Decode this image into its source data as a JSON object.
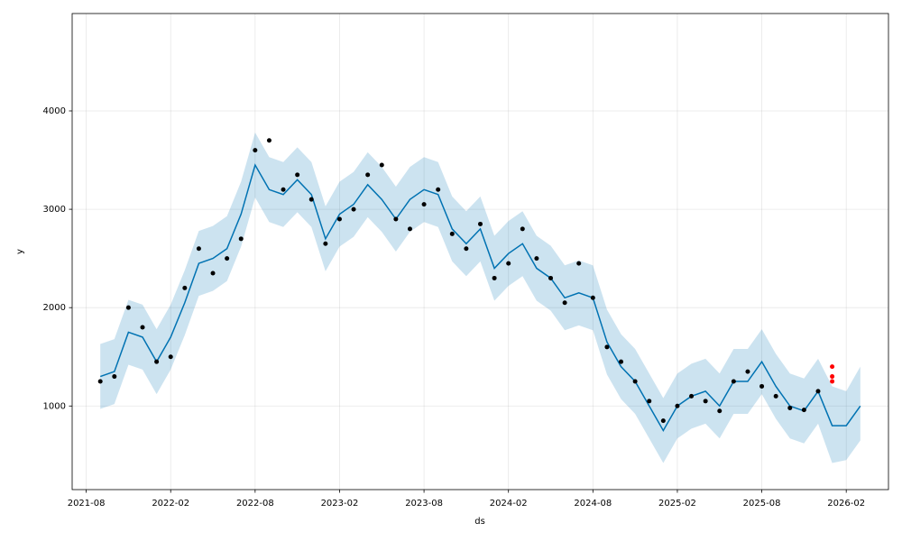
{
  "chart_data": {
    "type": "forecast",
    "x_label": "ds",
    "y_label": "y",
    "xlim": [
      "2021-07",
      "2026-05"
    ],
    "ylim": [
      150,
      4990
    ],
    "xticks": [
      "2021-08",
      "2022-02",
      "2022-08",
      "2023-02",
      "2023-08",
      "2024-02",
      "2024-08",
      "2025-02",
      "2025-08",
      "2026-02"
    ],
    "yticks": [
      1000,
      2000,
      3000,
      4000
    ],
    "grid": true,
    "series": [
      {
        "type": "band-line",
        "color": "#0072B2",
        "band_color": "#0072B2",
        "band_alpha": 0.2,
        "x": [
          "2021-09",
          "2021-10",
          "2021-11",
          "2021-12",
          "2022-01",
          "2022-02",
          "2022-03",
          "2022-04",
          "2022-05",
          "2022-06",
          "2022-07",
          "2022-08",
          "2022-09",
          "2022-10",
          "2022-11",
          "2022-12",
          "2023-01",
          "2023-02",
          "2023-03",
          "2023-04",
          "2023-05",
          "2023-06",
          "2023-07",
          "2023-08",
          "2023-09",
          "2023-10",
          "2023-11",
          "2023-12",
          "2024-01",
          "2024-02",
          "2024-03",
          "2024-04",
          "2024-05",
          "2024-06",
          "2024-07",
          "2024-08",
          "2024-09",
          "2024-10",
          "2024-11",
          "2024-12",
          "2025-01",
          "2025-02",
          "2025-03",
          "2025-04",
          "2025-05",
          "2025-06",
          "2025-07",
          "2025-08",
          "2025-09",
          "2025-10",
          "2025-11",
          "2025-12",
          "2026-01",
          "2026-02",
          "2026-03"
        ],
        "values": [
          1300,
          1350,
          1750,
          1700,
          1450,
          1700,
          2050,
          2450,
          2500,
          2600,
          2950,
          3450,
          3200,
          3150,
          3300,
          3150,
          2700,
          2950,
          3050,
          3250,
          3100,
          2900,
          3100,
          3200,
          3150,
          2800,
          2650,
          2800,
          2400,
          2550,
          2650,
          2400,
          2300,
          2100,
          2150,
          2100,
          1650,
          1400,
          1250,
          1000,
          750,
          1000,
          1100,
          1150,
          1000,
          1250,
          1250,
          1450,
          1200,
          1000,
          950,
          1150,
          800,
          800,
          1000
        ],
        "lower": [
          970,
          1020,
          1420,
          1370,
          1120,
          1370,
          1720,
          2120,
          2170,
          2270,
          2620,
          3120,
          2870,
          2820,
          2970,
          2820,
          2370,
          2620,
          2720,
          2920,
          2770,
          2570,
          2770,
          2870,
          2820,
          2470,
          2320,
          2470,
          2070,
          2220,
          2320,
          2070,
          1970,
          1770,
          1820,
          1770,
          1320,
          1070,
          920,
          670,
          420,
          670,
          770,
          820,
          670,
          920,
          920,
          1120,
          870,
          670,
          620,
          820,
          420,
          450,
          650
        ],
        "upper": [
          1630,
          1680,
          2080,
          2030,
          1780,
          2030,
          2380,
          2780,
          2830,
          2930,
          3280,
          3780,
          3530,
          3480,
          3630,
          3480,
          3030,
          3280,
          3380,
          3580,
          3430,
          3230,
          3430,
          3530,
          3480,
          3130,
          2980,
          3130,
          2730,
          2880,
          2980,
          2730,
          2630,
          2430,
          2480,
          2430,
          1980,
          1730,
          1580,
          1330,
          1080,
          1330,
          1430,
          1480,
          1330,
          1580,
          1580,
          1780,
          1530,
          1330,
          1280,
          1480,
          1200,
          1150,
          1400
        ]
      },
      {
        "type": "scatter",
        "color": "#000000",
        "x": [
          "2021-09",
          "2021-10",
          "2021-11",
          "2021-12",
          "2022-01",
          "2022-02",
          "2022-03",
          "2022-04",
          "2022-05",
          "2022-06",
          "2022-07",
          "2022-08",
          "2022-09",
          "2022-10",
          "2022-11",
          "2022-12",
          "2023-01",
          "2023-02",
          "2023-03",
          "2023-04",
          "2023-05",
          "2023-06",
          "2023-07",
          "2023-08",
          "2023-09",
          "2023-10",
          "2023-11",
          "2023-12",
          "2024-01",
          "2024-02",
          "2024-03",
          "2024-04",
          "2024-05",
          "2024-06",
          "2024-07",
          "2024-08",
          "2024-09",
          "2024-10",
          "2024-11",
          "2024-12",
          "2025-01",
          "2025-02",
          "2025-03",
          "2025-04",
          "2025-05",
          "2025-06",
          "2025-07",
          "2025-08",
          "2025-09",
          "2025-10",
          "2025-11",
          "2025-12"
        ],
        "values": [
          1250,
          1300,
          2000,
          1800,
          1450,
          1500,
          2200,
          2600,
          2350,
          2500,
          2700,
          3600,
          3700,
          3200,
          3350,
          3100,
          2650,
          2900,
          3000,
          3350,
          3450,
          2900,
          2800,
          3050,
          3200,
          2750,
          2600,
          2850,
          2300,
          2450,
          2800,
          2500,
          2300,
          2050,
          2450,
          2100,
          1600,
          1450,
          1250,
          1050,
          850,
          1000,
          1100,
          1050,
          950,
          1250,
          1350,
          1200,
          1100,
          980,
          960,
          1150
        ]
      },
      {
        "type": "scatter",
        "color": "#ff0000",
        "x": [
          "2026-01",
          "2026-01",
          "2026-01"
        ],
        "values": [
          1250,
          1400,
          1300
        ]
      }
    ]
  }
}
